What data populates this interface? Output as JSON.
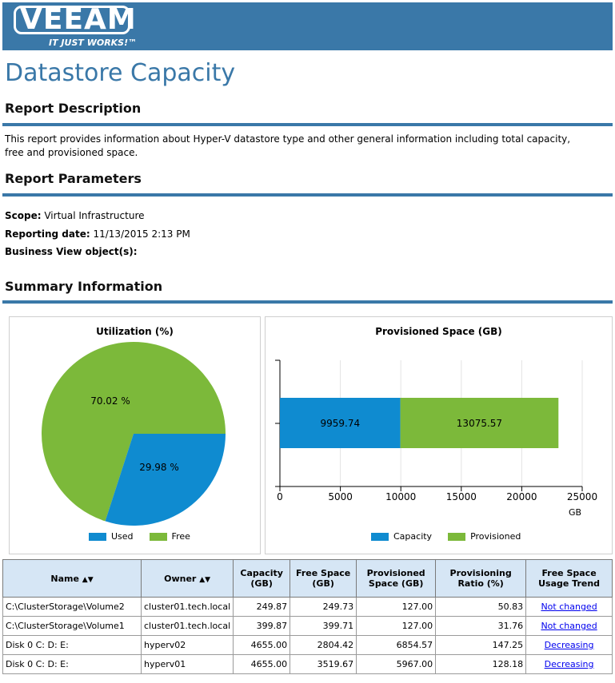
{
  "banner": {
    "logo": "VEEAM",
    "tagline": "IT JUST WORKS!™"
  },
  "page_title": "Datastore Capacity",
  "description": {
    "title": "Report Description",
    "text": "This report provides information about Hyper-V datastore type and other general information including total capacity, free and provisioned space."
  },
  "parameters": {
    "title": "Report Parameters",
    "scope_label": "Scope:",
    "scope_value": "Virtual Infrastructure",
    "date_label": "Reporting date:",
    "date_value": "11/13/2015 2:13 PM",
    "bv_label": "Business View object(s):"
  },
  "summary": {
    "title": "Summary Information"
  },
  "pie": {
    "title": "Utilization (%)",
    "free_label": "70.02 %",
    "used_label": "29.98 %",
    "legend_used": "Used",
    "legend_free": "Free"
  },
  "bar": {
    "title": "Provisioned Space (GB)",
    "unit": "GB",
    "ticks": [
      "0",
      "5000",
      "10000",
      "15000",
      "20000",
      "25000"
    ],
    "capacity_label": "9959.74",
    "provisioned_label": "13075.57",
    "legend_capacity": "Capacity",
    "legend_provisioned": "Provisioned"
  },
  "colors": {
    "used": "#0f8bd0",
    "free": "#7cb93a",
    "accent": "#3a78a8"
  },
  "chart_data": [
    {
      "type": "pie",
      "title": "Utilization (%)",
      "labels": [
        "Used",
        "Free"
      ],
      "values": [
        29.98,
        70.02
      ]
    },
    {
      "type": "bar",
      "title": "Provisioned Space (GB)",
      "orientation": "horizontal",
      "stacked": true,
      "xlabel": "GB",
      "xlim": [
        0,
        25000
      ],
      "series": [
        {
          "name": "Capacity",
          "values": [
            9959.74
          ]
        },
        {
          "name": "Provisioned",
          "values": [
            13075.57
          ]
        }
      ]
    }
  ],
  "table": {
    "headers": {
      "name": "Name",
      "owner": "Owner",
      "capacity": "Capacity (GB)",
      "free": "Free Space (GB)",
      "provisioned": "Provisioned Space (GB)",
      "ratio": "Provisioning Ratio (%)",
      "trend": "Free Space Usage Trend"
    },
    "rows": [
      {
        "name": "C:\\ClusterStorage\\Volume2",
        "owner": "cluster01.tech.local",
        "capacity": "249.87",
        "free": "249.73",
        "provisioned": "127.00",
        "ratio": "50.83",
        "trend": "Not changed"
      },
      {
        "name": "C:\\ClusterStorage\\Volume1",
        "owner": "cluster01.tech.local",
        "capacity": "399.87",
        "free": "399.71",
        "provisioned": "127.00",
        "ratio": "31.76",
        "trend": "Not changed"
      },
      {
        "name": "Disk 0  C: D: E:",
        "owner": "hyperv02",
        "capacity": "4655.00",
        "free": "2804.42",
        "provisioned": "6854.57",
        "ratio": "147.25",
        "trend": "Decreasing"
      },
      {
        "name": "Disk 0  C: D: E:",
        "owner": "hyperv01",
        "capacity": "4655.00",
        "free": "3519.67",
        "provisioned": "5967.00",
        "ratio": "128.18",
        "trend": "Decreasing"
      }
    ]
  }
}
